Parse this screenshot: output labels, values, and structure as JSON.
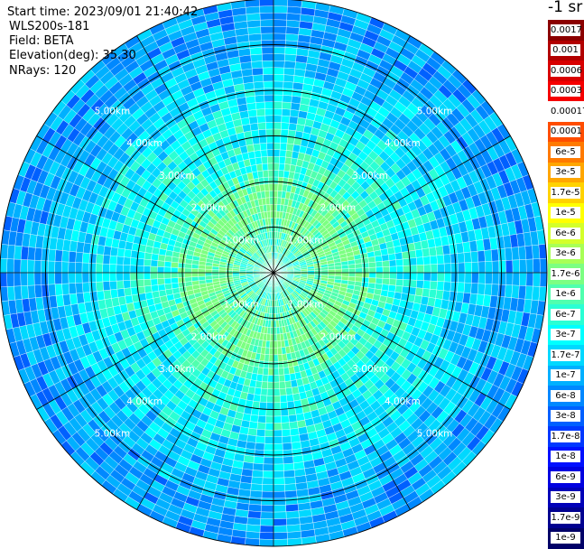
{
  "header": {
    "start_time": "Start time: 2023/09/01 21:40:42",
    "site": "WLS200s-181",
    "field": "Field: BETA",
    "elevation": "Elevation(deg): 35.30",
    "nrays": "NRays: 120"
  },
  "colorbar": {
    "title": "-1 sr",
    "levels": [
      {
        "label": "0.0017",
        "color": "#8b0000"
      },
      {
        "label": "0.001",
        "color": "#b20000"
      },
      {
        "label": "0.0006",
        "color": "#d80000"
      },
      {
        "label": "0.0003",
        "color": "#f50000"
      },
      {
        "label": "0.00017",
        "color": "#ffffff"
      },
      {
        "label": "0.0001",
        "color": "#ff4d00"
      },
      {
        "label": "6e-5",
        "color": "#ff7a00"
      },
      {
        "label": "3e-5",
        "color": "#ffa600"
      },
      {
        "label": "1.7e-5",
        "color": "#ffd200"
      },
      {
        "label": "1e-5",
        "color": "#ffff00"
      },
      {
        "label": "6e-6",
        "color": "#d4ff2a"
      },
      {
        "label": "3e-6",
        "color": "#a8ff56"
      },
      {
        "label": "1.7e-6",
        "color": "#7cff82"
      },
      {
        "label": "1e-6",
        "color": "#50ffae"
      },
      {
        "label": "6e-7",
        "color": "#2affd4"
      },
      {
        "label": "3e-7",
        "color": "#00ffff"
      },
      {
        "label": "1.7e-7",
        "color": "#00d8ff"
      },
      {
        "label": "1e-7",
        "color": "#00b0ff"
      },
      {
        "label": "6e-8",
        "color": "#0088ff"
      },
      {
        "label": "3e-8",
        "color": "#0060ff"
      },
      {
        "label": "1.7e-8",
        "color": "#0038ff"
      },
      {
        "label": "1e-8",
        "color": "#0010ff"
      },
      {
        "label": "6e-9",
        "color": "#0000e0"
      },
      {
        "label": "3e-9",
        "color": "#0000b8"
      },
      {
        "label": "1.7e-9",
        "color": "#000090"
      },
      {
        "label": "1e-9",
        "color": "#000068"
      }
    ]
  },
  "chart_data": {
    "type": "heatmap",
    "projection": "polar (PPI scan)",
    "field": "BETA",
    "units": "-1 sr",
    "elevation_deg": 35.3,
    "n_rays": 120,
    "max_range_km": 6.0,
    "range_ring_labels": [
      "1.00km",
      "2.00km",
      "3.00km",
      "4.00km",
      "5.00km"
    ],
    "range_rings_km": [
      1,
      2,
      3,
      4,
      5,
      6
    ],
    "azimuth_lines_deg": [
      0,
      30,
      60,
      90,
      120,
      150,
      180,
      210,
      240,
      270,
      300,
      330
    ],
    "range_profile": [
      {
        "range_km": 0.5,
        "beta": 5e-07
      },
      {
        "range_km": 1.5,
        "beta": 1.7e-06
      },
      {
        "range_km": 2.5,
        "beta": 3e-07
      },
      {
        "range_km": 3.5,
        "beta": 1.7e-07
      },
      {
        "range_km": 4.5,
        "beta": 6e-08
      },
      {
        "range_km": 5.5,
        "beta": 3e-08
      }
    ],
    "grid": true
  }
}
